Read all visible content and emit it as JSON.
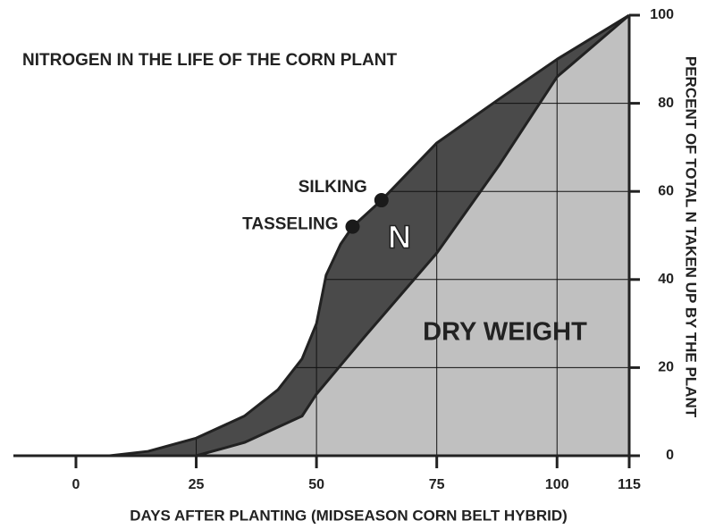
{
  "chart_data": {
    "type": "area",
    "title": "NITROGEN IN THE LIFE OF  THE CORN PLANT",
    "xlabel": "DAYS AFTER PLANTING (MIDSEASON CORN BELT HYBRID)",
    "ylabel": "PERCENT OF TOTAL N TAKEN UP BY THE PLANT",
    "xlim": [
      -13,
      115
    ],
    "xticks": [
      0,
      25,
      50,
      75,
      100,
      115
    ],
    "ylim": [
      0,
      100
    ],
    "yticks": [
      0,
      20,
      40,
      60,
      80,
      100
    ],
    "grid": true,
    "series": [
      {
        "name": "N",
        "color": "#4a4a4a",
        "x": [
          7,
          15,
          25,
          35,
          42,
          47,
          50,
          52,
          55,
          57.5,
          63.5,
          75,
          88,
          100,
          115
        ],
        "values": [
          0,
          1,
          4,
          9,
          15,
          22,
          30,
          41,
          48,
          52,
          58,
          71,
          81,
          90,
          100
        ]
      },
      {
        "name": "DRY WEIGHT",
        "color": "#c0c0c0",
        "x": [
          25,
          35,
          47,
          50,
          60,
          75,
          88,
          100,
          115
        ],
        "values": [
          0,
          3,
          9,
          14,
          27,
          46,
          66,
          86,
          100
        ]
      }
    ],
    "points": [
      {
        "label": "SILKING",
        "x": 63.5,
        "y": 58
      },
      {
        "label": "TASSELING",
        "x": 57.5,
        "y": 52
      }
    ]
  }
}
